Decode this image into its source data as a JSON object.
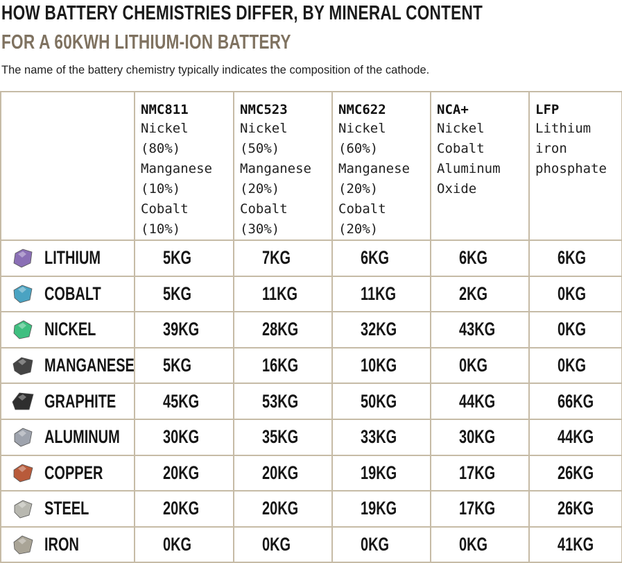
{
  "title": "HOW BATTERY CHEMISTRIES DIFFER, BY MINERAL CONTENT",
  "subtitle": "FOR A 60KWH LITHIUM-ION BATTERY",
  "note": "The name of the battery chemistry typically indicates the composition of the cathode.",
  "colors": {
    "title": "#1a1a1a",
    "subtitle": "#7f7260",
    "grid_border": "#c6bba6"
  },
  "chart_data": {
    "type": "table",
    "columns": [
      {
        "name": "NMC811",
        "description": "Nickel (80%)\nManganese\n(10%) Cobalt\n(10%)"
      },
      {
        "name": "NMC523",
        "description": "Nickel (50%)\nManganese\n(20%) Cobalt\n(30%)"
      },
      {
        "name": "NMC622",
        "description": "Nickel (60%)\nManganese\n(20%) Cobalt\n(20%)"
      },
      {
        "name": "NCA+",
        "description": "Nickel Cobalt\nAluminum\nOxide"
      },
      {
        "name": "LFP",
        "description": "Lithium iron\nphosphate"
      }
    ],
    "rows": [
      {
        "mineral": "LITHIUM",
        "icon": "lithium-gem-icon",
        "color": "#8a6fb5",
        "values": [
          "5KG",
          "7KG",
          "6KG",
          "6KG",
          "6KG"
        ]
      },
      {
        "mineral": "COBALT",
        "icon": "cobalt-gem-icon",
        "color": "#4aa3c2",
        "values": [
          "5KG",
          "11KG",
          "11KG",
          "2KG",
          "0KG"
        ]
      },
      {
        "mineral": "NICKEL",
        "icon": "nickel-gem-icon",
        "color": "#3fbf80",
        "values": [
          "39KG",
          "28KG",
          "32KG",
          "43KG",
          "0KG"
        ]
      },
      {
        "mineral": "MANGANESE",
        "icon": "manganese-gem-icon",
        "color": "#444444",
        "values": [
          "5KG",
          "16KG",
          "10KG",
          "0KG",
          "0KG"
        ]
      },
      {
        "mineral": "GRAPHITE",
        "icon": "graphite-gem-icon",
        "color": "#2e2e2e",
        "values": [
          "45KG",
          "53KG",
          "50KG",
          "44KG",
          "66KG"
        ]
      },
      {
        "mineral": "ALUMINUM",
        "icon": "aluminum-gem-icon",
        "color": "#9ea3ad",
        "values": [
          "30KG",
          "35KG",
          "33KG",
          "30KG",
          "44KG"
        ]
      },
      {
        "mineral": "COPPER",
        "icon": "copper-gem-icon",
        "color": "#b85a3a",
        "values": [
          "20KG",
          "20KG",
          "19KG",
          "17KG",
          "26KG"
        ]
      },
      {
        "mineral": "STEEL",
        "icon": "steel-gem-icon",
        "color": "#b8b8b0",
        "values": [
          "20KG",
          "20KG",
          "19KG",
          "17KG",
          "26KG"
        ]
      },
      {
        "mineral": "IRON",
        "icon": "iron-gem-icon",
        "color": "#a9a496",
        "values": [
          "0KG",
          "0KG",
          "0KG",
          "0KG",
          "41KG"
        ]
      }
    ]
  }
}
